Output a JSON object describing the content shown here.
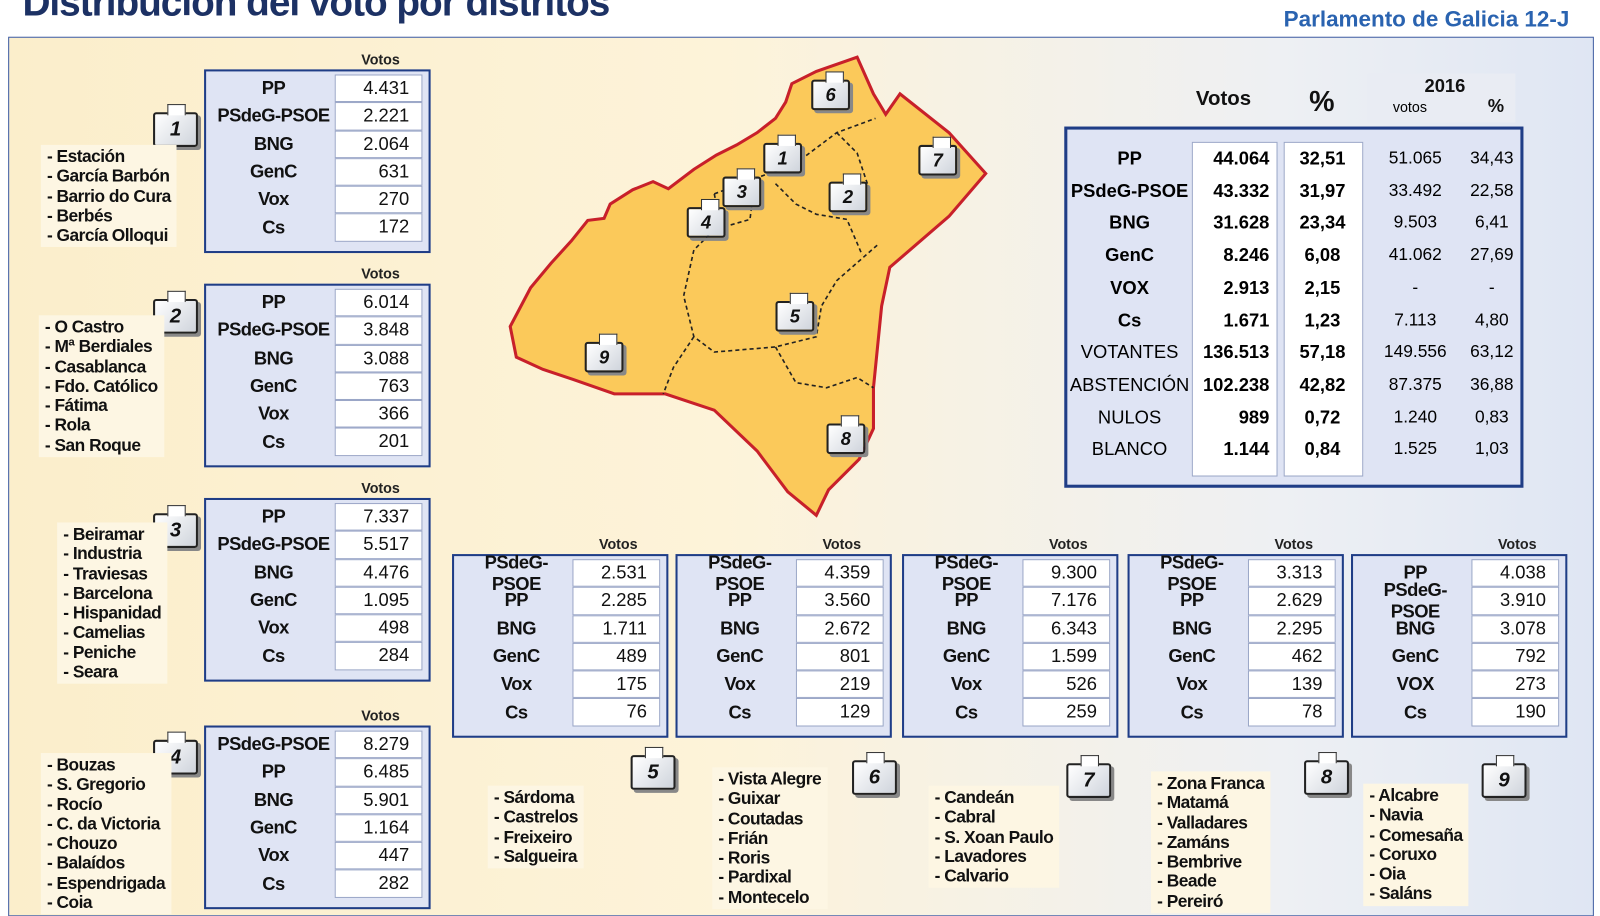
{
  "header": {
    "title": "Distribución del voto por distritos",
    "subtitle": "Parlamento de Galicia 12-J"
  },
  "summary": {
    "headers": {
      "votes": "Votos",
      "pct": "%",
      "year": "2016",
      "votes_2016": "votos",
      "pct_2016": "%"
    },
    "rows": [
      [
        "PP",
        "44.064",
        "32,51",
        "51.065",
        "34,43"
      ],
      [
        "PSdeG-PSOE",
        "43.332",
        "31,97",
        "33.492",
        "22,58"
      ],
      [
        "BNG",
        "31.628",
        "23,34",
        "9.503",
        "6,41"
      ],
      [
        "GenC",
        "8.246",
        "6,08",
        "41.062",
        "27,69"
      ],
      [
        "VOX",
        "2.913",
        "2,15",
        "-",
        "-"
      ],
      [
        "Cs",
        "1.671",
        "1,23",
        "7.113",
        "4,80"
      ],
      [
        "VOTANTES",
        "136.513",
        "57,18",
        "149.556",
        "63,12"
      ],
      [
        "ABSTENCIÓN",
        "102.238",
        "42,82",
        "87.375",
        "36,88"
      ],
      [
        "NULOS",
        "989",
        "0,72",
        "1.240",
        "0,83"
      ],
      [
        "BLANCO",
        "1.144",
        "0,84",
        "1.525",
        "1,03"
      ]
    ]
  },
  "districts": [
    {
      "number": "1",
      "votes_label": "Votos",
      "rows": [
        [
          "PP",
          "4.431"
        ],
        [
          "PSdeG-PSOE",
          "2.221"
        ],
        [
          "BNG",
          "2.064"
        ],
        [
          "GenC",
          "631"
        ],
        [
          "Vox",
          "270"
        ],
        [
          "Cs",
          "172"
        ]
      ],
      "areas": [
        "- Estación",
        "- García Barbón",
        "- Barrio do Cura",
        "- Berbés",
        "- García Olloqui"
      ]
    },
    {
      "number": "2",
      "votes_label": "Votos",
      "rows": [
        [
          "PP",
          "6.014"
        ],
        [
          "PSdeG-PSOE",
          "3.848"
        ],
        [
          "BNG",
          "3.088"
        ],
        [
          "GenC",
          "763"
        ],
        [
          "Vox",
          "366"
        ],
        [
          "Cs",
          "201"
        ]
      ],
      "areas": [
        "- O Castro",
        "- Mª Berdiales",
        "- Casablanca",
        "- Fdo. Católico",
        "- Fátima",
        "- Rola",
        "- San Roque"
      ]
    },
    {
      "number": "3",
      "votes_label": "Votos",
      "rows": [
        [
          "PP",
          "7.337"
        ],
        [
          "PSdeG-PSOE",
          "5.517"
        ],
        [
          "BNG",
          "4.476"
        ],
        [
          "GenC",
          "1.095"
        ],
        [
          "Vox",
          "498"
        ],
        [
          "Cs",
          "284"
        ]
      ],
      "areas": [
        "- Beiramar",
        "- Industria",
        "- Traviesas",
        "- Barcelona",
        "- Hispanidad",
        "- Camelias",
        "- Peniche",
        "- Seara"
      ]
    },
    {
      "number": "4",
      "votes_label": "Votos",
      "rows": [
        [
          "PSdeG-PSOE",
          "8.279"
        ],
        [
          "PP",
          "6.485"
        ],
        [
          "BNG",
          "5.901"
        ],
        [
          "GenC",
          "1.164"
        ],
        [
          "Vox",
          "447"
        ],
        [
          "Cs",
          "282"
        ]
      ],
      "areas": [
        "- Bouzas",
        "- S. Gregorio",
        "- Rocío",
        "- C. da Victoria",
        "- Chouzo",
        "- Balaídos",
        "- Espendrigada",
        "- Coia"
      ]
    },
    {
      "number": "5",
      "votes_label": "Votos",
      "rows": [
        [
          "PSdeG-PSOE",
          "2.531"
        ],
        [
          "PP",
          "2.285"
        ],
        [
          "BNG",
          "1.711"
        ],
        [
          "GenC",
          "489"
        ],
        [
          "Vox",
          "175"
        ],
        [
          "Cs",
          "76"
        ]
      ],
      "areas": [
        "- Sárdoma",
        "- Castrelos",
        "- Freixeiro",
        "- Salgueira"
      ]
    },
    {
      "number": "6",
      "votes_label": "Votos",
      "rows": [
        [
          "PSdeG-PSOE",
          "4.359"
        ],
        [
          "PP",
          "3.560"
        ],
        [
          "BNG",
          "2.672"
        ],
        [
          "GenC",
          "801"
        ],
        [
          "Vox",
          "219"
        ],
        [
          "Cs",
          "129"
        ]
      ],
      "areas": [
        "- Vista Alegre",
        "- Guixar",
        "- Coutadas",
        "- Frián",
        "- Roris",
        "- Pardixal",
        "- Montecelo"
      ]
    },
    {
      "number": "7",
      "votes_label": "Votos",
      "rows": [
        [
          "PSdeG-PSOE",
          "9.300"
        ],
        [
          "PP",
          "7.176"
        ],
        [
          "BNG",
          "6.343"
        ],
        [
          "GenC",
          "1.599"
        ],
        [
          "Vox",
          "526"
        ],
        [
          "Cs",
          "259"
        ]
      ],
      "areas": [
        "- Candeán",
        "- Cabral",
        "- S. Xoan Paulo",
        "- Lavadores",
        "- Calvario"
      ]
    },
    {
      "number": "8",
      "votes_label": "Votos",
      "rows": [
        [
          "PSdeG-PSOE",
          "3.313"
        ],
        [
          "PP",
          "2.629"
        ],
        [
          "BNG",
          "2.295"
        ],
        [
          "GenC",
          "462"
        ],
        [
          "Vox",
          "139"
        ],
        [
          "Cs",
          "78"
        ]
      ],
      "areas": [
        "- Zona Franca",
        "- Matamá",
        "- Valladares",
        "- Zamáns",
        "- Bembrive",
        "- Beade",
        "- Pereiró"
      ]
    },
    {
      "number": "9",
      "votes_label": "Votos",
      "rows": [
        [
          "PP",
          "4.038"
        ],
        [
          "PSdeG-PSOE",
          "3.910"
        ],
        [
          "BNG",
          "3.078"
        ],
        [
          "GenC",
          "792"
        ],
        [
          "VOX",
          "273"
        ],
        [
          "Cs",
          "190"
        ]
      ],
      "areas": [
        "- Alcabre",
        "- Navia",
        "- Comesaña",
        "- Coruxo",
        "- Oia",
        "- Saláns"
      ]
    }
  ]
}
